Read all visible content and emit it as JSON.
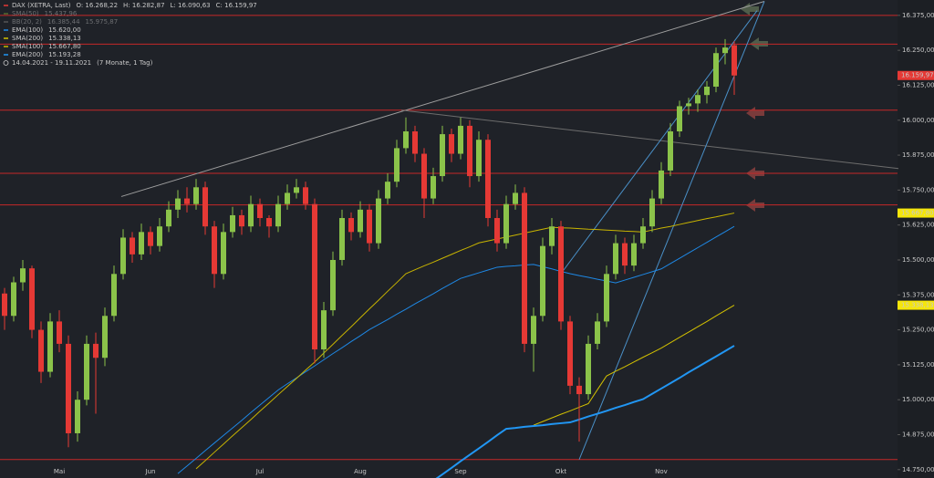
{
  "chart_data": {
    "type": "candlestick",
    "title": "DAX (XETRA, Last)",
    "header_values": [
      "O: 16.268,22",
      "H: 16.282,87",
      "L: 16.090,63",
      "C: 16.159,97"
    ],
    "date_range": "14.04.2021 - 19.11.2021",
    "date_span": "(7 Monate, 1 Tag)",
    "categories": [
      null,
      null,
      null,
      null,
      null,
      null,
      "Mai",
      null,
      null,
      null,
      null,
      null,
      null,
      null,
      null,
      null,
      "Jun",
      null,
      null,
      null,
      null,
      null,
      null,
      null,
      null,
      null,
      null,
      null,
      "Jul",
      null,
      null,
      null,
      null,
      null,
      null,
      null,
      null,
      null,
      null,
      "Aug",
      null,
      null,
      null,
      null,
      null,
      null,
      null,
      null,
      null,
      null,
      "Sep",
      null,
      null,
      null,
      null,
      null,
      null,
      null,
      null,
      null,
      null,
      "Okt",
      null,
      null,
      null,
      null,
      null,
      null,
      null,
      null,
      null,
      null,
      "Nov",
      null,
      null,
      null,
      null,
      null,
      null,
      null,
      null
    ],
    "open": [
      15380,
      15300,
      15420,
      15470,
      15250,
      15100,
      15280,
      15200,
      14880,
      15000,
      15200,
      15150,
      15300,
      15450,
      15580,
      15520,
      15600,
      15550,
      15620,
      15680,
      15720,
      15700,
      15760,
      15620,
      15450,
      15600,
      15660,
      15620,
      15700,
      15650,
      15620,
      15700,
      15740,
      15760,
      15700,
      15180,
      15320,
      15500,
      15650,
      15600,
      15680,
      15560,
      15720,
      15780,
      15900,
      15960,
      15880,
      15720,
      15800,
      15950,
      15880,
      15980,
      15800,
      15930,
      15650,
      15560,
      15700,
      15740,
      15200,
      15300,
      15550,
      15620,
      15280,
      15050,
      15020,
      15200,
      15280,
      15450,
      15560,
      15480,
      15560,
      15620,
      15720,
      15820,
      15960,
      16050,
      16060,
      16090,
      16120,
      16240,
      16268.22
    ],
    "high": [
      15400,
      15440,
      15500,
      15480,
      15280,
      15310,
      15320,
      15230,
      15030,
      15230,
      15240,
      15330,
      15480,
      15610,
      15600,
      15630,
      15620,
      15650,
      15710,
      15750,
      15760,
      15790,
      15780,
      15640,
      15630,
      15690,
      15680,
      15730,
      15720,
      15660,
      15730,
      15770,
      15790,
      15780,
      15720,
      15350,
      15530,
      15680,
      15670,
      15710,
      15700,
      15750,
      15810,
      15930,
      16010,
      15980,
      15900,
      15830,
      15980,
      15970,
      16010,
      16000,
      15960,
      15950,
      15680,
      15730,
      15770,
      15760,
      15330,
      15580,
      15650,
      15640,
      15300,
      15080,
      15230,
      15310,
      15480,
      15590,
      15580,
      15590,
      15650,
      15750,
      15850,
      15990,
      16070,
      16080,
      16110,
      16140,
      16260,
      16290,
      16282.87
    ],
    "low": [
      15250,
      15280,
      15390,
      15220,
      15060,
      15080,
      15170,
      14830,
      14850,
      14980,
      14950,
      15120,
      15280,
      15430,
      15490,
      15500,
      15520,
      15530,
      15600,
      15650,
      15670,
      15680,
      15590,
      15400,
      15430,
      15580,
      15590,
      15600,
      15620,
      15580,
      15600,
      15680,
      15720,
      15680,
      15130,
      15150,
      15300,
      15480,
      15570,
      15580,
      15530,
      15540,
      15700,
      15760,
      15880,
      15850,
      15650,
      15700,
      15780,
      15850,
      15860,
      15760,
      15780,
      15620,
      15530,
      15540,
      15680,
      15170,
      15100,
      15280,
      15520,
      15250,
      15020,
      14850,
      15000,
      15180,
      15260,
      15430,
      15450,
      15460,
      15540,
      15600,
      15700,
      15800,
      15940,
      16020,
      16030,
      16060,
      16100,
      16200,
      16090.63
    ],
    "close": [
      15300,
      15420,
      15470,
      15250,
      15100,
      15280,
      15200,
      14880,
      15000,
      15200,
      15150,
      15300,
      15450,
      15580,
      15520,
      15600,
      15550,
      15620,
      15680,
      15720,
      15700,
      15760,
      15620,
      15450,
      15600,
      15660,
      15620,
      15700,
      15650,
      15620,
      15700,
      15740,
      15760,
      15700,
      15180,
      15320,
      15500,
      15650,
      15600,
      15680,
      15560,
      15720,
      15780,
      15900,
      15960,
      15880,
      15720,
      15800,
      15950,
      15880,
      15980,
      15800,
      15930,
      15650,
      15560,
      15700,
      15740,
      15200,
      15300,
      15550,
      15620,
      15280,
      15050,
      15020,
      15200,
      15280,
      15450,
      15560,
      15480,
      15560,
      15620,
      15720,
      15820,
      15960,
      16050,
      16060,
      16090,
      16120,
      16240,
      16260,
      16159.97
    ],
    "up_color": "#8bc34a",
    "down_color": "#e53935",
    "last_label": "16.159,97",
    "ylim": [
      14720,
      16430
    ],
    "yticks": [
      {
        "value": 14750,
        "label": "14.750,00"
      },
      {
        "value": 14875,
        "label": "14.875,00"
      },
      {
        "value": 15000,
        "label": "15.000,00"
      },
      {
        "value": 15125,
        "label": "15.125,00"
      },
      {
        "value": 15250,
        "label": "15.250,00"
      },
      {
        "value": 15375,
        "label": "15.375,00"
      },
      {
        "value": 15500,
        "label": "15.500,00"
      },
      {
        "value": 15625,
        "label": "15.625,00"
      },
      {
        "value": 15750,
        "label": "15.750,00"
      },
      {
        "value": 15875,
        "label": "15.875,00"
      },
      {
        "value": 16000,
        "label": "16.000,00"
      },
      {
        "value": 16125,
        "label": "16.125,00"
      },
      {
        "value": 16250,
        "label": "16.250,00"
      },
      {
        "value": 16375,
        "label": "16.375,00"
      }
    ],
    "legend_extra": [
      {
        "name": "SMA(50)",
        "legend_value": "15.437,96",
        "color": "#556b2f"
      },
      {
        "name": "BB(20, 2)",
        "legend_value": "16.385,44",
        "legend_value2": "15.975,87",
        "color": "#555555"
      }
    ],
    "overlays": [
      {
        "name": "EMA(100)",
        "legend_value": "15.620,00",
        "color": "#1e88e5",
        "width": 1,
        "values": [
          null,
          null,
          null,
          null,
          null,
          null,
          null,
          null,
          null,
          null,
          null,
          null,
          null,
          null,
          null,
          null,
          null,
          null,
          null,
          14736,
          14763,
          14790,
          14818,
          14845,
          14872,
          14899,
          14926,
          14954,
          14981,
          15008,
          15035,
          15057,
          15078,
          15100,
          15121,
          15143,
          15165,
          15186,
          15208,
          15229,
          15251,
          15269,
          15287,
          15306,
          15324,
          15343,
          15361,
          15379,
          15398,
          15416,
          15434,
          15444,
          15454,
          15464,
          15474,
          15477,
          15479,
          15482,
          15484,
          15476,
          15468,
          15459,
          15451,
          15444,
          15438,
          15431,
          15425,
          15418,
          15428,
          15438,
          15448,
          15458,
          15468,
          15487,
          15506,
          15525,
          15544,
          15563,
          15582,
          15601,
          15620
        ]
      },
      {
        "name": "SMA(200)",
        "legend_value": "15.338,13",
        "color": "#d4c200",
        "width": 1,
        "tag": true,
        "values": [
          null,
          null,
          null,
          null,
          null,
          null,
          null,
          null,
          null,
          null,
          null,
          null,
          null,
          null,
          null,
          null,
          null,
          null,
          null,
          null,
          null,
          null,
          null,
          null,
          null,
          null,
          null,
          null,
          null,
          null,
          null,
          null,
          null,
          null,
          null,
          null,
          null,
          null,
          null,
          null,
          null,
          null,
          null,
          null,
          null,
          null,
          null,
          null,
          null,
          null,
          null,
          null,
          null,
          null,
          null,
          null,
          null,
          null,
          14909,
          14922,
          14935,
          14948,
          14960,
          14973,
          14986,
          15036,
          15085,
          15102,
          15118,
          15135,
          15152,
          15168,
          15185,
          15204,
          15223,
          15242,
          15261,
          15280,
          15300,
          15319,
          15338.13
        ]
      },
      {
        "name": "SMA(100)",
        "legend_value": "15.667,80",
        "color": "#c8b400",
        "width": 1,
        "tag": true,
        "values": [
          null,
          null,
          null,
          null,
          null,
          null,
          null,
          null,
          null,
          null,
          null,
          null,
          null,
          null,
          null,
          null,
          null,
          null,
          null,
          null,
          null,
          14753,
          14782,
          14812,
          14841,
          14871,
          14900,
          14929,
          14959,
          14988,
          15018,
          15047,
          15076,
          15106,
          15135,
          15167,
          15198,
          15230,
          15261,
          15293,
          15325,
          15356,
          15388,
          15419,
          15451,
          15465,
          15479,
          15492,
          15506,
          15520,
          15534,
          15547,
          15561,
          15568,
          15575,
          15582,
          15589,
          15596,
          15603,
          15610,
          15617,
          15615,
          15614,
          15612,
          15610,
          15609,
          15607,
          15605,
          15603,
          15602,
          15600,
          15607,
          15614,
          15620,
          15627,
          15634,
          15641,
          15648,
          15654,
          15661,
          15667.8
        ]
      },
      {
        "name": "EMA(200)",
        "legend_value": "15.193,28",
        "color": "#2196f3",
        "width": 2,
        "values": [
          null,
          null,
          null,
          null,
          null,
          null,
          null,
          null,
          null,
          null,
          null,
          null,
          null,
          null,
          null,
          null,
          null,
          null,
          null,
          null,
          null,
          null,
          null,
          null,
          null,
          null,
          null,
          null,
          null,
          null,
          null,
          null,
          null,
          null,
          null,
          null,
          null,
          null,
          null,
          null,
          null,
          null,
          null,
          null,
          null,
          null,
          null,
          14710,
          14733,
          14756,
          14780,
          14803,
          14826,
          14849,
          14873,
          14896,
          14899,
          14903,
          14906,
          14909,
          14913,
          14916,
          14919,
          14929,
          14940,
          14950,
          14960,
          14971,
          14981,
          14992,
          15002,
          15021,
          15040,
          15059,
          15078,
          15098,
          15117,
          15136,
          15155,
          15174,
          15193.28
        ]
      }
    ],
    "levels": [
      16375,
      16272,
      16036,
      15810,
      15697,
      14786
    ],
    "level_color": "#c62828",
    "trendlines": [
      {
        "color": "#9e9e9e",
        "points": [
          [
            12.8,
            15727
          ],
          [
            83.3,
            16425
          ]
        ]
      },
      {
        "color": "#6d6d6d",
        "points": [
          [
            43.5,
            16036
          ],
          [
            98,
            15827
          ]
        ]
      },
      {
        "color": "#4a90c8",
        "points": [
          [
            63,
            14786
          ],
          [
            83.3,
            16425
          ]
        ]
      },
      {
        "color": "#4a90c8",
        "points": [
          [
            61,
            15451
          ],
          [
            82.5,
            16392
          ]
        ]
      }
    ]
  }
}
